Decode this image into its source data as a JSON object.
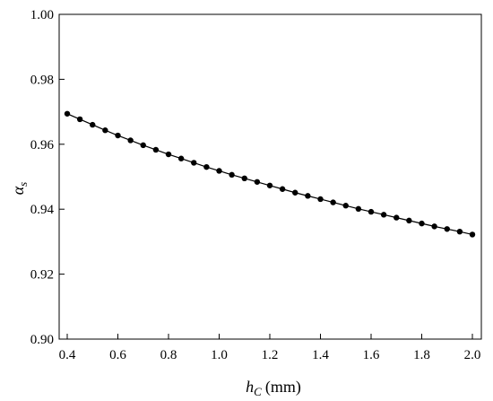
{
  "chart_data": {
    "type": "line",
    "title": "",
    "xlabel_main": "h",
    "xlabel_sub": "C",
    "xlabel_unit": "(mm)",
    "ylabel_main": "α",
    "ylabel_sub": "s",
    "xlim": [
      0.4,
      2.0
    ],
    "ylim": [
      0.9,
      1.0
    ],
    "x_ticks": [
      "0.4",
      "0.6",
      "0.8",
      "1.0",
      "1.2",
      "1.4",
      "1.6",
      "1.8",
      "2.0"
    ],
    "y_ticks": [
      "0.90",
      "0.92",
      "0.94",
      "0.96",
      "0.98",
      "1.00"
    ],
    "grid": false,
    "legend": "none",
    "line_color": "#000000",
    "marker": "filled-circle",
    "series": [
      {
        "x": [
          0.4,
          0.45,
          0.5,
          0.55,
          0.6,
          0.65,
          0.7,
          0.75,
          0.8,
          0.85,
          0.9,
          0.95,
          1.0,
          1.05,
          1.1,
          1.15,
          1.2,
          1.25,
          1.3,
          1.35,
          1.4,
          1.45,
          1.5,
          1.55,
          1.6,
          1.65,
          1.7,
          1.75,
          1.8,
          1.85,
          1.9,
          1.95,
          2.0
        ],
        "values": [
          0.9694,
          0.9677,
          0.966,
          0.9643,
          0.9627,
          0.9612,
          0.9597,
          0.9583,
          0.9569,
          0.9556,
          0.9543,
          0.953,
          0.9518,
          0.9506,
          0.9495,
          0.9484,
          0.9473,
          0.9462,
          0.9451,
          0.9441,
          0.9431,
          0.9421,
          0.9411,
          0.9401,
          0.9392,
          0.9383,
          0.9374,
          0.9365,
          0.9356,
          0.9347,
          0.9339,
          0.9331,
          0.9322
        ]
      }
    ]
  }
}
